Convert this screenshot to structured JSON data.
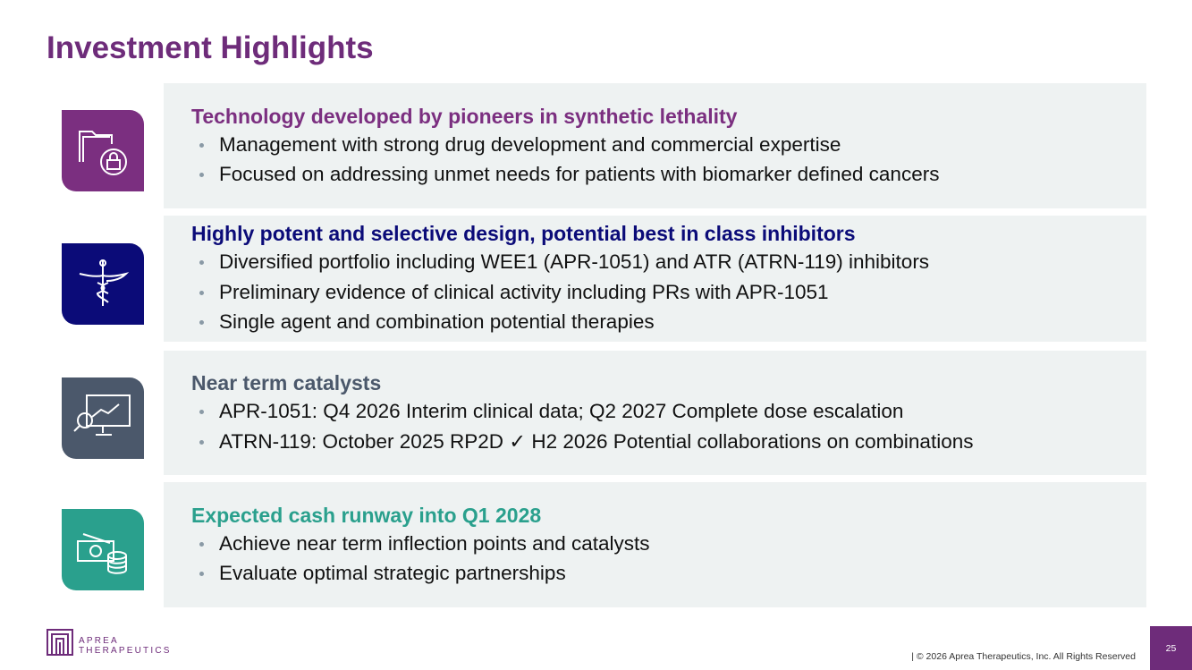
{
  "title": "Investment Highlights",
  "sections": [
    {
      "heading": "Technology developed by pioneers in synthetic lethality",
      "bullets": [
        "Management with strong drug development and commercial expertise",
        "Focused on addressing unmet needs for patients with biomarker defined cancers"
      ]
    },
    {
      "heading": "Highly potent and selective design, potential best in class inhibitors",
      "bullets": [
        "Diversified portfolio including WEE1 (APR-1051) and ATR (ATRN-119) inhibitors",
        "Preliminary evidence of clinical activity including PRs with APR-1051",
        "Single agent and combination potential therapies"
      ]
    },
    {
      "heading": "Near term catalysts",
      "bullets": [
        "APR-1051: Q4 2026 Interim clinical data; Q2 2027 Complete dose escalation",
        "ATRN-119: October 2025 RP2D ✓ H2 2026 Potential collaborations on combinations"
      ]
    },
    {
      "heading": "Expected cash runway into Q1 2028",
      "bullets": [
        "Achieve near term inflection points and catalysts",
        "Evaluate optimal strategic partnerships"
      ]
    }
  ],
  "footer": {
    "logo_line1": "APREA",
    "logo_line2": "THERAPEUTICS",
    "copyright": "| © 2026 Aprea Therapeutics, Inc. All Rights Reserved",
    "page_number": 25
  }
}
